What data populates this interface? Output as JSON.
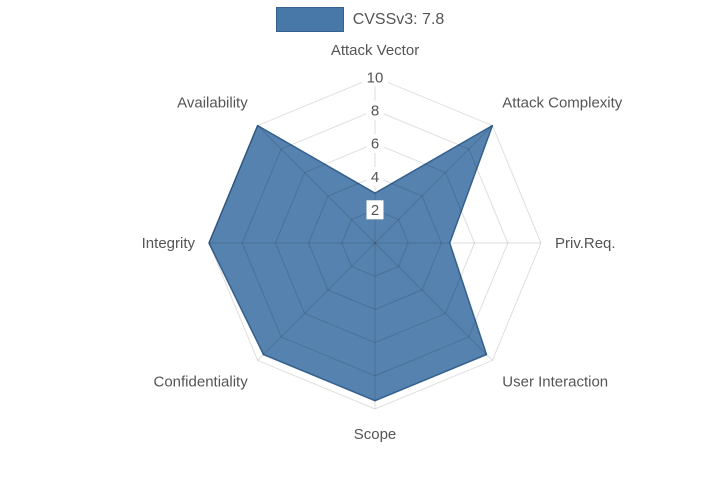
{
  "chart_data": {
    "type": "radar",
    "categories": [
      "Attack Vector",
      "Attack Complexity",
      "Priv.Req.",
      "User Interaction",
      "Scope",
      "Confidentiality",
      "Integrity",
      "Availability"
    ],
    "series": [
      {
        "name": "CVSSv3: 7.8",
        "values": [
          3,
          10,
          4.5,
          9.5,
          9.5,
          9.5,
          10,
          10
        ]
      }
    ],
    "ticks": [
      2,
      4,
      6,
      8,
      10
    ],
    "rmin": 0,
    "rmax": 10,
    "grid": true,
    "grid_style": "spiderweb",
    "legend_position": "top",
    "colors": {
      "fill": "#4878a8",
      "fill_opacity": 0.93,
      "stroke": "#35608f",
      "grid": "rgba(0,0,0,0.13)",
      "tick_text": "#545454",
      "tick_backdrop": "#ffffff",
      "label_text": "#555555"
    }
  }
}
